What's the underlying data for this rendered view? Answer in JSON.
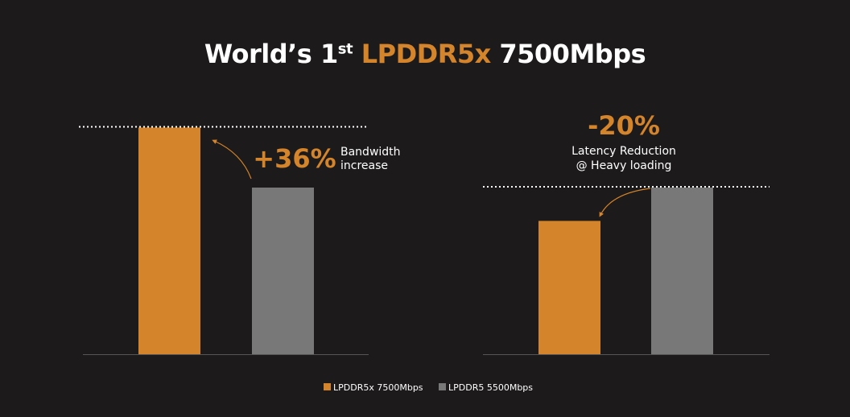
{
  "title": {
    "prefix": "World’s 1",
    "sup": "st",
    "highlight": "LPDDR5x",
    "suffix": "7500Mbps"
  },
  "colors": {
    "background": "#1c1a1b",
    "accent": "#d4842a",
    "gray": "#787878",
    "text": "#ffffff"
  },
  "chart_data": [
    {
      "type": "bar",
      "categories": [
        "LPDDR5x 7500Mbps",
        "LPDDR5 5500Mbps"
      ],
      "values": [
        136,
        100
      ],
      "annotation": {
        "value": "+36%",
        "text_lines": [
          "Bandwidth",
          "increase"
        ]
      },
      "grid": false
    },
    {
      "type": "bar",
      "categories": [
        "LPDDR5x 7500Mbps",
        "LPDDR5 5500Mbps"
      ],
      "values": [
        80,
        100
      ],
      "annotation": {
        "value": "-20%",
        "text_lines": [
          "Latency Reduction",
          "@ Heavy loading"
        ]
      },
      "grid": false
    }
  ],
  "legend": {
    "placement": "bottom",
    "items": [
      {
        "label": "LPDDR5x 7500Mbps",
        "color": "#d4842a"
      },
      {
        "label": "LPDDR5 5500Mbps",
        "color": "#787878"
      }
    ]
  }
}
